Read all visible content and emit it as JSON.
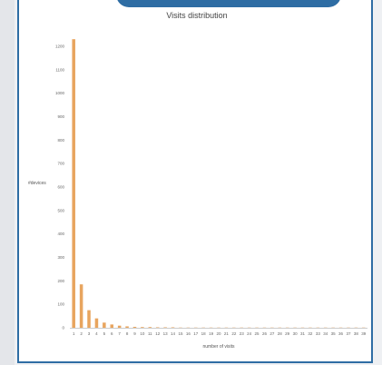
{
  "chart_data": {
    "type": "bar",
    "title": "Visits distribution",
    "xlabel": "number of visits",
    "ylabel": "#devices",
    "ylim": [
      0,
      1250
    ],
    "yticks": [
      0,
      100,
      200,
      300,
      400,
      500,
      600,
      700,
      800,
      900,
      1000,
      1100,
      1200
    ],
    "categories": [
      "1",
      "2",
      "3",
      "4",
      "5",
      "6",
      "7",
      "8",
      "9",
      "10",
      "11",
      "12",
      "13",
      "14",
      "15",
      "16",
      "17",
      "18",
      "19",
      "20",
      "21",
      "22",
      "23",
      "24",
      "25",
      "26",
      "27",
      "28",
      "29",
      "30",
      "31",
      "32",
      "33",
      "34",
      "35",
      "36",
      "37",
      "38",
      "39"
    ],
    "values": [
      1230,
      185,
      75,
      40,
      22,
      14,
      9,
      6,
      4,
      3,
      3,
      2,
      2,
      2,
      1,
      1,
      1,
      1,
      1,
      1,
      1,
      1,
      1,
      1,
      1,
      1,
      1,
      1,
      1,
      1,
      1,
      1,
      1,
      1,
      1,
      1,
      1,
      1,
      1
    ],
    "bar_color": "#e8a55f",
    "grid": false
  }
}
